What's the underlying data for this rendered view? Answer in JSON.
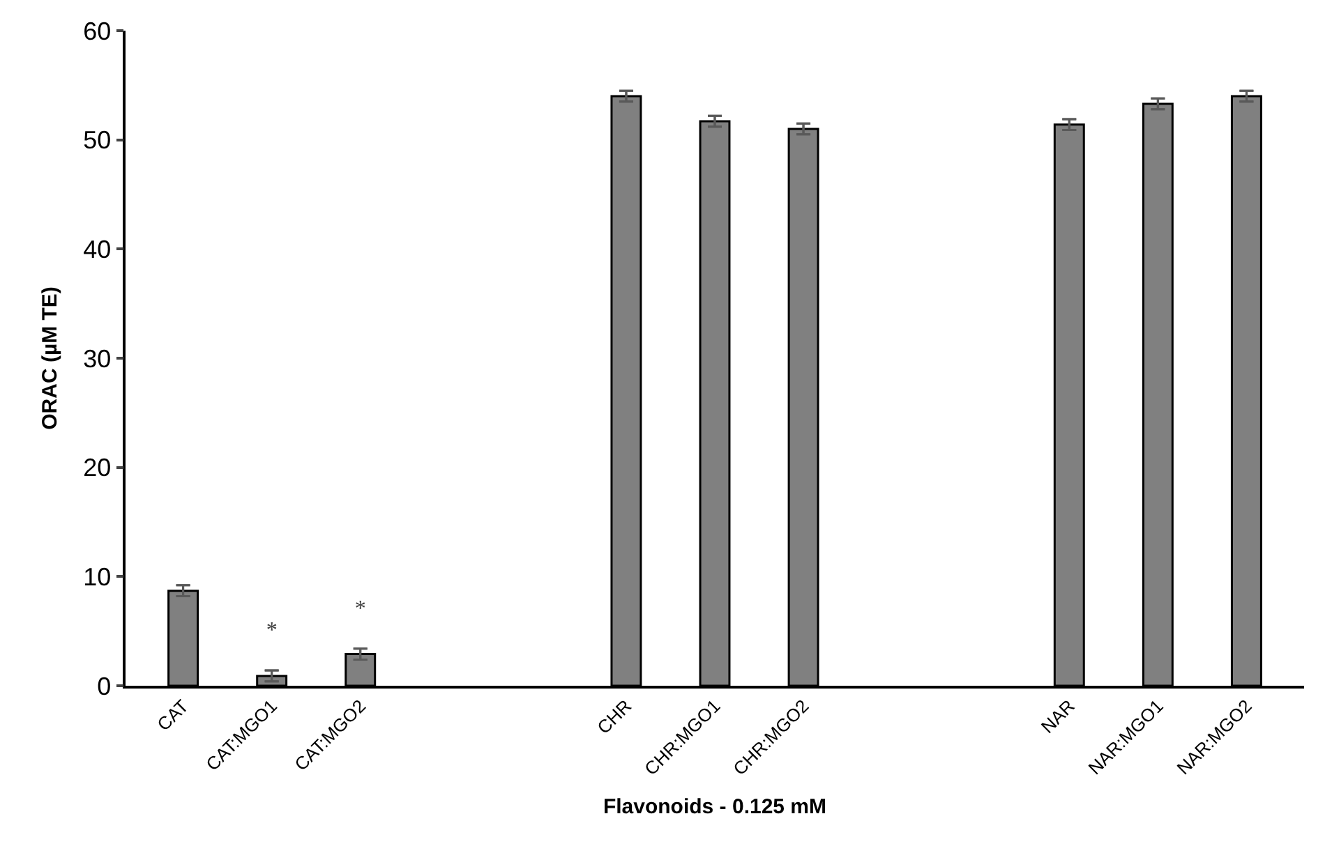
{
  "chart_data": {
    "type": "bar",
    "xlabel": "Flavonoids - 0.125 mM",
    "ylabel": "ORAC (µM TE)",
    "categories": [
      "CAT",
      "CAT:MGO1",
      "CAT:MGO2",
      null,
      null,
      "CHR",
      "CHR:MGO1",
      "CHR:MGO2",
      null,
      null,
      "NAR",
      "NAR:MGO1",
      "NAR:MGO2"
    ],
    "values": [
      8.7,
      0.9,
      2.9,
      null,
      null,
      54.0,
      51.7,
      51.0,
      null,
      null,
      51.4,
      53.3,
      54.0
    ],
    "errors": [
      0.5,
      0.5,
      0.5,
      null,
      null,
      0.5,
      0.5,
      0.5,
      null,
      null,
      0.5,
      0.5,
      0.5
    ],
    "color": "#808080",
    "value_labels": [
      null,
      "*",
      "*",
      null,
      null,
      null,
      null,
      null,
      null,
      null,
      null,
      null,
      null
    ],
    "ylim": [
      0,
      60
    ],
    "yticks": [
      0,
      10,
      20,
      30,
      40,
      50,
      60
    ],
    "legend": false
  }
}
